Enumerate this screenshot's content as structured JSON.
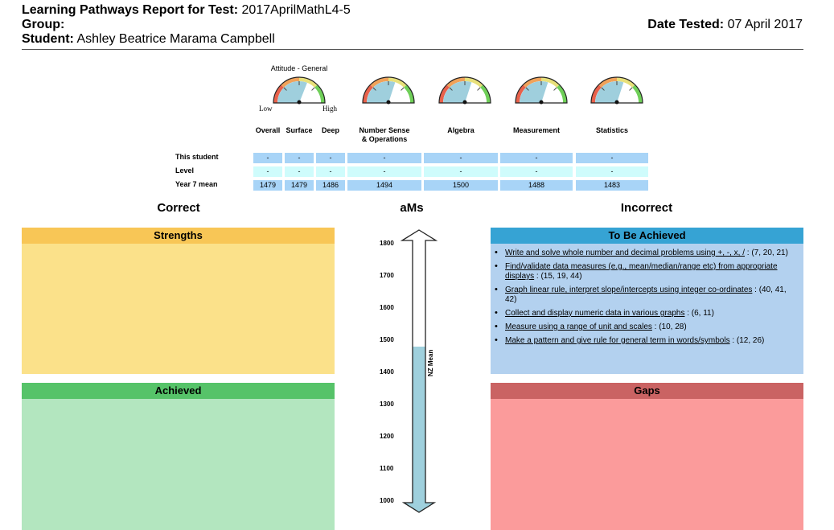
{
  "header": {
    "title_label": "Learning Pathways Report for Test:",
    "test_name": "2017AprilMathL4-5",
    "group_label": "Group:",
    "group_value": "",
    "student_label": "Student:",
    "student_name": "Ashley Beatrice Marama Campbell",
    "date_label": "Date Tested:",
    "date_value": "07 April 2017"
  },
  "gauges": {
    "caption": "Attitude - General",
    "low_label": "Low",
    "high_label": "High",
    "items": [
      {
        "name": "attitude",
        "level": 0.62
      },
      {
        "name": "number-sense",
        "level": 0.6
      },
      {
        "name": "algebra",
        "level": 0.6
      },
      {
        "name": "measurement",
        "level": 0.6
      },
      {
        "name": "statistics",
        "level": 0.6
      }
    ]
  },
  "scores": {
    "columns": [
      "Overall",
      "Surface",
      "Deep",
      "Number Sense\n& Operations",
      "Algebra",
      "Measurement",
      "Statistics"
    ],
    "rows": [
      {
        "label": "This student",
        "values": [
          "-",
          "-",
          "-",
          "-",
          "-",
          "-",
          "-"
        ]
      },
      {
        "label": "Level",
        "values": [
          "-",
          "-",
          "-",
          "-",
          "-",
          "-",
          "-"
        ]
      },
      {
        "label": "Year 7 mean",
        "values": [
          "1479",
          "1479",
          "1486",
          "1494",
          "1500",
          "1488",
          "1483"
        ]
      }
    ]
  },
  "sections": {
    "correct": "Correct",
    "ams": "aMs",
    "incorrect": "Incorrect"
  },
  "boxes": {
    "strengths": {
      "title": "Strengths",
      "color": "#fbe18a",
      "title_color": "#f8c656"
    },
    "achieved": {
      "title": "Achieved",
      "color": "#b3e6bf",
      "title_color": "#56c369"
    },
    "to_be_achieved": {
      "title": "To Be Achieved",
      "color": "#b3d1ef",
      "title_color": "#36a3d4",
      "items": [
        {
          "link": "Write and solve whole number and decimal problems using +, -, x, /",
          "refs": " : (7, 20, 21)"
        },
        {
          "link": "Find/validate data measures (e.g., mean/median/range etc) from appropriate displays",
          "refs": " : (15, 19, 44)"
        },
        {
          "link": "Graph linear rule, interpret slope/intercepts using integer co-ordinates",
          "refs": " : (40, 41, 42)"
        },
        {
          "link": "Collect and display numeric data in various graphs",
          "refs": " : (6, 11)"
        },
        {
          "link": "Measure using a range of unit and scales",
          "refs": " : (10, 28)"
        },
        {
          "link": "Make a pattern and give rule for general term in words/symbols",
          "refs": " : (12, 26)"
        }
      ]
    },
    "gaps": {
      "title": "Gaps",
      "color": "#fb9b9b",
      "title_color": "#ca6363"
    }
  },
  "scale": {
    "ticks": [
      "1800",
      "1700",
      "1600",
      "1500",
      "1400",
      "1300",
      "1200",
      "1100",
      "1000"
    ],
    "min": 1000,
    "max": 1800,
    "fill_value": 1480,
    "fill_color": "#9fd0dd",
    "label": "NZ Mean"
  }
}
